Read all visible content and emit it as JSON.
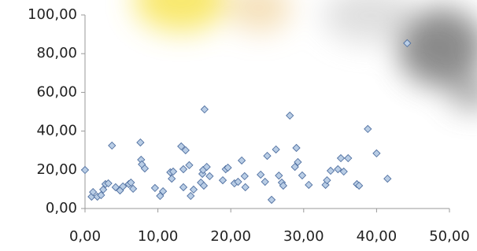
{
  "chart_data": {
    "type": "scatter",
    "x": [
      0.0,
      0.9,
      1.1,
      1.7,
      2.2,
      2.5,
      2.8,
      3.2,
      3.7,
      4.2,
      4.8,
      5.2,
      6.0,
      6.3,
      6.6,
      7.6,
      7.7,
      7.8,
      8.2,
      9.6,
      10.3,
      10.7,
      11.7,
      11.9,
      12.1,
      13.2,
      13.5,
      13.8,
      13.5,
      14.3,
      14.5,
      14.9,
      15.9,
      16.1,
      16.2,
      16.4,
      16.3,
      16.7,
      17.1,
      18.9,
      19.3,
      19.6,
      20.5,
      21.0,
      21.5,
      21.9,
      22.0,
      24.1,
      24.7,
      25.0,
      25.6,
      26.2,
      26.6,
      27.0,
      27.2,
      28.1,
      28.8,
      29.0,
      29.2,
      29.8,
      30.7,
      33.0,
      33.2,
      33.7,
      34.7,
      35.1,
      35.5,
      36.1,
      37.3,
      37.6,
      38.8,
      40.0,
      41.5,
      44.2
    ],
    "values": [
      19.9,
      6.1,
      8.5,
      6.1,
      6.9,
      9.8,
      12.6,
      13.0,
      32.5,
      11.0,
      9.3,
      11.4,
      12.6,
      13.4,
      10.2,
      34.1,
      25.2,
      22.8,
      20.7,
      10.6,
      6.5,
      8.9,
      18.7,
      15.4,
      19.1,
      32.1,
      20.3,
      30.1,
      11.0,
      22.4,
      6.5,
      9.8,
      13.4,
      17.9,
      19.9,
      51.2,
      11.8,
      21.5,
      16.7,
      14.6,
      20.3,
      21.1,
      13.0,
      13.8,
      24.8,
      16.7,
      11.0,
      17.5,
      13.8,
      27.2,
      4.5,
      30.5,
      17.0,
      13.4,
      11.8,
      48.0,
      21.5,
      31.3,
      24.0,
      17.1,
      12.2,
      12.2,
      14.6,
      19.5,
      20.3,
      26.0,
      19.1,
      26.0,
      12.6,
      11.8,
      41.1,
      28.5,
      15.4,
      85.4
    ],
    "color": "#b9cde5",
    "xlim": [
      0,
      50
    ],
    "ylim": [
      0,
      100
    ],
    "xticks": [
      {
        "value": 0,
        "label": "0,00"
      },
      {
        "value": 10,
        "label": "10,00"
      },
      {
        "value": 20,
        "label": "20,00"
      },
      {
        "value": 30,
        "label": "30,00"
      },
      {
        "value": 40,
        "label": "40,00"
      },
      {
        "value": 50,
        "label": "50,00"
      }
    ],
    "yticks": [
      {
        "value": 0,
        "label": "0,00"
      },
      {
        "value": 20,
        "label": "20,00"
      },
      {
        "value": 40,
        "label": "40,00"
      },
      {
        "value": 60,
        "label": "60,00"
      },
      {
        "value": 80,
        "label": "80,00"
      },
      {
        "value": 100,
        "label": "100,00"
      }
    ]
  }
}
